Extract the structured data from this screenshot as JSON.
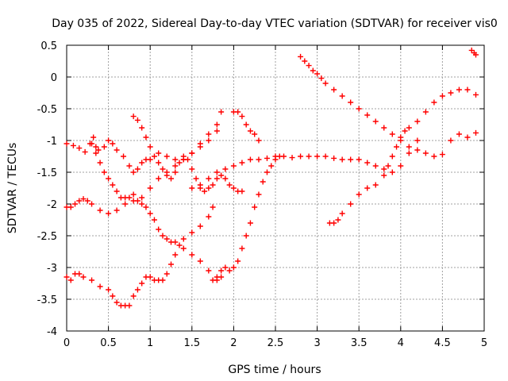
{
  "chart_data": {
    "type": "scatter",
    "title": "Day 035 of 2022, Sidereal Day-to-day VTEC variation (SDTVAR) for receiver vis0",
    "xlabel": "GPS time / hours",
    "ylabel": "SDTVAR / TECUs",
    "xlim": [
      0,
      5
    ],
    "ylim": [
      -4,
      0.5
    ],
    "xticks": [
      "0",
      "0.5",
      "1",
      "1.5",
      "2",
      "2.5",
      "3",
      "3.5",
      "4",
      "4.5",
      "5"
    ],
    "yticks": [
      "0.5",
      "0",
      "-0.5",
      "-1",
      "-1.5",
      "-2",
      "-2.5",
      "-3",
      "-3.5",
      "-4"
    ],
    "grid": true,
    "marker": "+",
    "color": "#ff0000",
    "series": [
      {
        "x": [
          0.0,
          0.08,
          0.15,
          0.22,
          0.28,
          0.32,
          0.35,
          0.38,
          0.45,
          0.5,
          0.55,
          0.6,
          0.68,
          0.75,
          0.8,
          0.85,
          0.9,
          0.95,
          1.0,
          1.1,
          1.2,
          1.3,
          1.4,
          1.5,
          1.6,
          1.7,
          1.8,
          1.85
        ],
        "y": [
          -1.05,
          -1.08,
          -1.12,
          -1.18,
          -1.05,
          -0.95,
          -1.1,
          -1.15,
          -1.1,
          -1.0,
          -1.05,
          -1.15,
          -1.25,
          -1.4,
          -1.5,
          -1.45,
          -1.35,
          -1.3,
          -1.3,
          -1.2,
          -1.25,
          -1.3,
          -1.3,
          -1.2,
          -1.05,
          -0.9,
          -0.75,
          -0.55
        ]
      },
      {
        "x": [
          0.3,
          0.35,
          0.4,
          0.45,
          0.5,
          0.55,
          0.6,
          0.65,
          0.7,
          0.75,
          0.8,
          0.85,
          0.9,
          0.95,
          1.0,
          1.05,
          1.1,
          1.15,
          1.2,
          1.25,
          1.3,
          1.4,
          1.5,
          1.6,
          1.7,
          1.8,
          1.85
        ],
        "y": [
          -1.05,
          -1.2,
          -1.35,
          -1.5,
          -1.6,
          -1.7,
          -1.8,
          -1.9,
          -1.9,
          -1.9,
          -1.85,
          -1.95,
          -2.0,
          -2.05,
          -2.15,
          -2.25,
          -2.4,
          -2.5,
          -2.55,
          -2.6,
          -2.6,
          -2.7,
          -2.8,
          -2.9,
          -3.05,
          -3.2,
          -3.15
        ]
      },
      {
        "x": [
          0.0,
          0.05,
          0.1,
          0.15,
          0.2,
          0.25,
          0.3,
          0.4,
          0.5,
          0.6,
          0.7,
          0.8,
          0.9,
          1.0,
          1.1,
          1.2,
          1.3,
          1.4,
          1.5,
          1.6,
          1.7,
          1.8
        ],
        "y": [
          -2.05,
          -2.05,
          -2.0,
          -1.95,
          -1.92,
          -1.95,
          -2.0,
          -2.1,
          -2.15,
          -2.1,
          -2.0,
          -1.95,
          -1.9,
          -1.75,
          -1.6,
          -1.5,
          -1.4,
          -1.3,
          -1.2,
          -1.1,
          -1.0,
          -0.85
        ]
      },
      {
        "x": [
          0.8,
          0.85,
          0.9,
          0.95,
          1.0,
          1.05,
          1.1,
          1.15,
          1.2,
          1.25,
          1.3,
          1.35,
          1.4,
          1.45,
          1.5,
          1.55,
          1.6,
          1.65,
          1.7,
          1.75,
          1.8,
          1.85,
          1.9,
          1.95,
          2.0,
          2.05,
          2.1
        ],
        "y": [
          -0.62,
          -0.68,
          -0.8,
          -0.95,
          -1.1,
          -1.25,
          -1.35,
          -1.45,
          -1.55,
          -1.6,
          -1.5,
          -1.35,
          -1.25,
          -1.3,
          -1.45,
          -1.6,
          -1.75,
          -1.8,
          -1.75,
          -1.7,
          -1.6,
          -1.55,
          -1.6,
          -1.7,
          -1.75,
          -1.8,
          -1.8
        ]
      },
      {
        "x": [
          0.0,
          0.05,
          0.1,
          0.15,
          0.2,
          0.3,
          0.4,
          0.5,
          0.55,
          0.6,
          0.65,
          0.7,
          0.75,
          0.8,
          0.85,
          0.9,
          0.95,
          1.0,
          1.05,
          1.1,
          1.15,
          1.2,
          1.25,
          1.3,
          1.35,
          1.4,
          1.5,
          1.6,
          1.7,
          1.75
        ],
        "y": [
          -3.15,
          -3.2,
          -3.1,
          -3.1,
          -3.15,
          -3.2,
          -3.3,
          -3.35,
          -3.45,
          -3.55,
          -3.6,
          -3.6,
          -3.6,
          -3.45,
          -3.35,
          -3.25,
          -3.15,
          -3.15,
          -3.2,
          -3.2,
          -3.2,
          -3.1,
          -2.95,
          -2.8,
          -2.65,
          -2.55,
          -2.45,
          -2.35,
          -2.2,
          -2.05
        ]
      },
      {
        "x": [
          1.75,
          1.8,
          1.85,
          1.9,
          1.95,
          2.0,
          2.05,
          2.1,
          2.15,
          2.2,
          2.25,
          2.3,
          2.35,
          2.4,
          2.45,
          2.5,
          2.55
        ],
        "y": [
          -3.2,
          -3.15,
          -3.05,
          -3.0,
          -3.05,
          -3.0,
          -2.9,
          -2.7,
          -2.5,
          -2.3,
          -2.05,
          -1.85,
          -1.65,
          -1.5,
          -1.4,
          -1.3,
          -1.25
        ]
      },
      {
        "x": [
          1.5,
          1.6,
          1.7,
          1.8,
          1.9,
          2.0,
          2.1,
          2.2,
          2.3,
          2.4,
          2.5,
          2.6,
          2.7,
          2.8,
          2.9,
          3.0,
          3.1,
          3.2,
          3.3,
          3.4,
          3.5,
          3.6,
          3.7,
          3.8,
          3.9,
          4.0,
          4.1,
          4.2
        ],
        "y": [
          -1.75,
          -1.7,
          -1.6,
          -1.5,
          -1.45,
          -1.4,
          -1.35,
          -1.3,
          -1.3,
          -1.28,
          -1.25,
          -1.25,
          -1.27,
          -1.25,
          -1.25,
          -1.25,
          -1.25,
          -1.28,
          -1.3,
          -1.3,
          -1.3,
          -1.35,
          -1.4,
          -1.45,
          -1.5,
          -1.4,
          -1.2,
          -1.0
        ]
      },
      {
        "x": [
          2.0,
          2.05,
          2.1,
          2.15,
          2.2,
          2.25,
          2.3
        ],
        "y": [
          -0.55,
          -0.55,
          -0.62,
          -0.75,
          -0.85,
          -0.9,
          -1.0
        ]
      },
      {
        "x": [
          2.8,
          2.85,
          2.9,
          2.95,
          3.0,
          3.05,
          3.1,
          3.2,
          3.3,
          3.4,
          3.5,
          3.6,
          3.7,
          3.8,
          3.9,
          4.0,
          4.1,
          4.2,
          4.3,
          4.4,
          4.5,
          4.6,
          4.7,
          4.8,
          4.9
        ],
        "y": [
          0.32,
          0.25,
          0.18,
          0.1,
          0.05,
          -0.02,
          -0.1,
          -0.2,
          -0.3,
          -0.4,
          -0.5,
          -0.6,
          -0.7,
          -0.8,
          -0.9,
          -1.0,
          -1.1,
          -1.15,
          -1.2,
          -1.25,
          -1.22,
          -1.0,
          -0.9,
          -0.95,
          -0.88
        ]
      },
      {
        "x": [
          3.15,
          3.2,
          3.25,
          3.3,
          3.4,
          3.5,
          3.6,
          3.7,
          3.8,
          3.85,
          3.9,
          3.95,
          4.0,
          4.05,
          4.1,
          4.2,
          4.3,
          4.4,
          4.5,
          4.6,
          4.7,
          4.8,
          4.9
        ],
        "y": [
          -2.3,
          -2.3,
          -2.25,
          -2.15,
          -2.0,
          -1.85,
          -1.75,
          -1.7,
          -1.55,
          -1.4,
          -1.25,
          -1.1,
          -0.95,
          -0.85,
          -0.8,
          -0.7,
          -0.55,
          -0.4,
          -0.3,
          -0.25,
          -0.2,
          -0.2,
          -0.28
        ]
      },
      {
        "x": [
          4.85,
          4.88,
          4.9
        ],
        "y": [
          0.42,
          0.38,
          0.35
        ]
      }
    ]
  }
}
